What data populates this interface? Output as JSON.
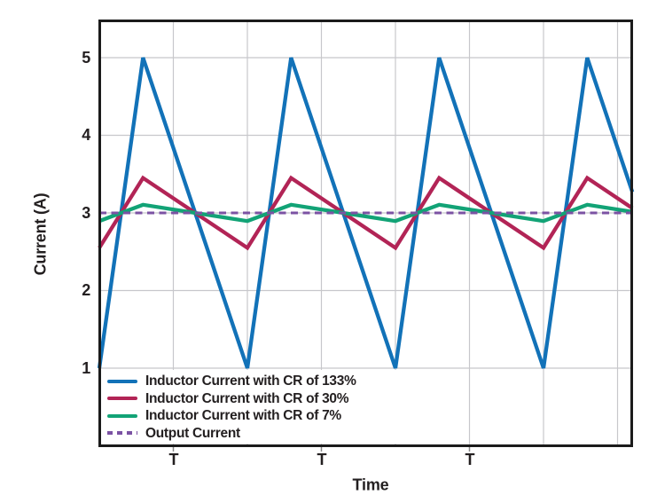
{
  "chart_data": {
    "type": "line",
    "title": "",
    "xlabel": "Time",
    "ylabel": "Current (A)",
    "x_unit": "switching period T",
    "x_range_periods": [
      0,
      3.6
    ],
    "x_tick_positions_periods": [
      0.5,
      1.5,
      2.5
    ],
    "x_tick_labels": [
      "T",
      "T",
      "T"
    ],
    "x_gridline_step_periods": 0.5,
    "ylim": [
      0,
      5.48
    ],
    "y_tick_values": [
      5,
      4,
      3,
      2,
      1
    ],
    "y_tick_labels": [
      "5",
      "4",
      "3",
      "2",
      "1"
    ],
    "grid": true,
    "legend_position": "lower-left",
    "average_current_a": 3,
    "duty_cycle_rise_fraction": 0.295,
    "series": [
      {
        "name": "Inductor Current with CR of 133%",
        "waveform": "triangle",
        "min": 1.0,
        "max": 5.0,
        "ripple_pp": 4.0,
        "color": "#1272b8",
        "line": "solid"
      },
      {
        "name": "Inductor Current with CR of 30%",
        "waveform": "triangle",
        "min": 2.55,
        "max": 3.45,
        "ripple_pp": 0.9,
        "color": "#b22456",
        "line": "solid"
      },
      {
        "name": "Inductor Current with CR of 7%",
        "waveform": "triangle",
        "min": 2.895,
        "max": 3.105,
        "ripple_pp": 0.21,
        "color": "#12a376",
        "line": "solid"
      },
      {
        "name": "Output Current",
        "waveform": "constant",
        "value": 3.0,
        "color": "#7b52a3",
        "line": "dashed"
      }
    ],
    "colors": {
      "grid": "#c7c7cb",
      "frame": "#1b1b1b",
      "text": "#231f20",
      "background": "#ffffff"
    }
  }
}
